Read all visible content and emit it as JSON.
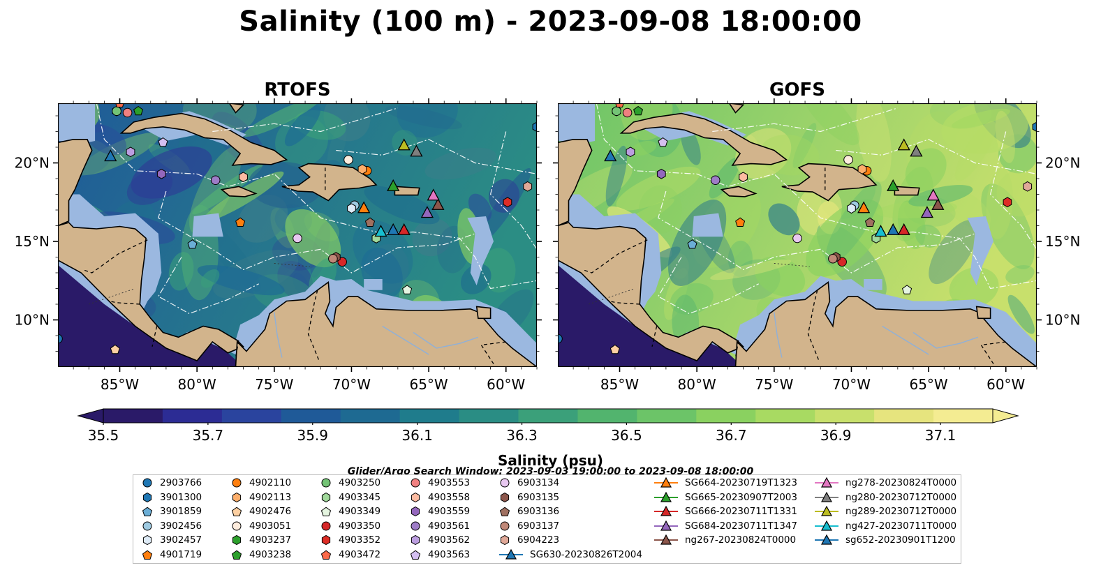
{
  "chart_data": {
    "type": "heatmap",
    "title": "Salinity (100 m) - 2023-09-08 18:00:00",
    "variable": "Salinity",
    "depth": "100 m",
    "timestamp": "2023-09-08 18:00:00",
    "panels": [
      {
        "id": "rtofs",
        "title": "RTOFS"
      },
      {
        "id": "gofs",
        "title": "GOFS"
      }
    ],
    "x_ticks": [
      "85°W",
      "80°W",
      "75°W",
      "70°W",
      "65°W",
      "60°W"
    ],
    "x_tick_values": [
      -85,
      -80,
      -75,
      -70,
      -65,
      -60
    ],
    "y_ticks": [
      "20°N",
      "15°N",
      "10°N"
    ],
    "y_tick_values": [
      20,
      15,
      10
    ],
    "xlim": [
      -89,
      -58
    ],
    "ylim": [
      7,
      23.8
    ],
    "colorbar": {
      "label": "Salinity (psu)",
      "ticks": [
        "35.5",
        "35.7",
        "35.9",
        "36.1",
        "36.3",
        "36.5",
        "36.7",
        "36.9",
        "37.1"
      ],
      "range": [
        35.5,
        37.2
      ],
      "extend": "both",
      "colors": [
        "#2a1a68",
        "#2c2c94",
        "#2a449e",
        "#1f5a98",
        "#1e6a92",
        "#1f7c8c",
        "#2a8d84",
        "#3ba07a",
        "#52b46e",
        "#6cc468",
        "#8ad160",
        "#a8da62",
        "#c8e06c",
        "#e6e47e",
        "#f4ec92"
      ]
    },
    "search_window": "Glider/Argo Search Window: 2023-09-03 19:00:00 to 2023-09-08 18:00:00",
    "argo_floats": [
      {
        "id": "2903766",
        "color": "#1f77b4",
        "marker": "circle",
        "lon": -89,
        "lat": 8.8
      },
      {
        "id": "3901300",
        "color": "#1f77b4",
        "marker": "hexagon",
        "lon": -58,
        "lat": 22.3
      },
      {
        "id": "3901859",
        "color": "#6baed6",
        "marker": "pentagon",
        "lon": -80.3,
        "lat": 14.8
      },
      {
        "id": "3902456",
        "color": "#9ecae1",
        "marker": "circle",
        "lon": -69.8,
        "lat": 17.3
      },
      {
        "id": "3902457",
        "color": "#deebf7",
        "marker": "hexagon",
        "lon": -70,
        "lat": 17.1
      },
      {
        "id": "4901719",
        "color": "#ff7f0e",
        "marker": "pentagon",
        "lon": -77.2,
        "lat": 16.2
      },
      {
        "id": "4902110",
        "color": "#ff7f0e",
        "marker": "circle",
        "lon": -69,
        "lat": 19.5
      },
      {
        "id": "4902113",
        "color": "#fdae6b",
        "marker": "hexagon",
        "lon": -69.3,
        "lat": 19.6
      },
      {
        "id": "4902476",
        "color": "#fdd0a2",
        "marker": "pentagon",
        "lon": -85.3,
        "lat": 8.1
      },
      {
        "id": "4903051",
        "color": "#feedde",
        "marker": "circle",
        "lon": -70.2,
        "lat": 20.2
      },
      {
        "id": "4903237",
        "color": "#2ca02c",
        "marker": "hexagon",
        "lon": -85.2,
        "lat": 23.3
      },
      {
        "id": "4903238",
        "color": "#2ca02c",
        "marker": "pentagon",
        "lon": -83.8,
        "lat": 23.3
      },
      {
        "id": "4903250",
        "color": "#74c476",
        "marker": "circle",
        "lon": -85.2,
        "lat": 23.3
      },
      {
        "id": "4903345",
        "color": "#a1d99b",
        "marker": "hexagon",
        "lon": -68.4,
        "lat": 15.2
      },
      {
        "id": "4903349",
        "color": "#e5f5e0",
        "marker": "pentagon",
        "lon": -66.4,
        "lat": 11.9
      },
      {
        "id": "4903350",
        "color": "#d62728",
        "marker": "circle",
        "lon": -70.6,
        "lat": 13.7
      },
      {
        "id": "4903352",
        "color": "#de2d26",
        "marker": "hexagon",
        "lon": -59.9,
        "lat": 17.5
      },
      {
        "id": "4903472",
        "color": "#fb6a4a",
        "marker": "pentagon",
        "lon": -85,
        "lat": 23.8
      },
      {
        "id": "4903553",
        "color": "#f08080",
        "marker": "circle",
        "lon": -84.5,
        "lat": 23.2
      },
      {
        "id": "4903558",
        "color": "#fcbba1",
        "marker": "hexagon",
        "lon": -77,
        "lat": 19.1
      },
      {
        "id": "4903559",
        "color": "#9467bd",
        "marker": "hexagon",
        "lon": -82.3,
        "lat": 19.3
      },
      {
        "id": "4903561",
        "color": "#9e7cc7",
        "marker": "circle",
        "lon": -78.8,
        "lat": 18.9
      },
      {
        "id": "4903562",
        "color": "#bc9ee0",
        "marker": "hexagon",
        "lon": -84.3,
        "lat": 20.7
      },
      {
        "id": "4903563",
        "color": "#d4bff0",
        "marker": "pentagon",
        "lon": -82.2,
        "lat": 21.3
      },
      {
        "id": "6903134",
        "color": "#e8c8f0",
        "marker": "circle",
        "lon": -73.5,
        "lat": 15.2
      },
      {
        "id": "6903135",
        "color": "#8c564b",
        "marker": "hexagon",
        "lon": -71,
        "lat": 14
      },
      {
        "id": "6903136",
        "color": "#a07060",
        "marker": "pentagon",
        "lon": -68.8,
        "lat": 16.2
      },
      {
        "id": "6903137",
        "color": "#c08878",
        "marker": "circle",
        "lon": -71.2,
        "lat": 13.9
      },
      {
        "id": "6904223",
        "color": "#e0a898",
        "marker": "hexagon",
        "lon": -58.6,
        "lat": 18.5
      }
    ],
    "gliders": [
      {
        "id": "SG630-20230826T2004",
        "color": "#1f77b4",
        "marker": "triangle",
        "lon": -85.6,
        "lat": 20.4
      },
      {
        "id": "SG664-20230719T1323",
        "color": "#ff7f0e",
        "marker": "triangle",
        "lon": -69.2,
        "lat": 17.1
      },
      {
        "id": "SG665-20230907T2003",
        "color": "#2ca02c",
        "marker": "triangle",
        "lon": -67.3,
        "lat": 18.5
      },
      {
        "id": "SG666-20230711T1331",
        "color": "#d62728",
        "marker": "triangle",
        "lon": -66.6,
        "lat": 15.7
      },
      {
        "id": "SG684-20230711T1347",
        "color": "#9467bd",
        "marker": "triangle",
        "lon": -65.1,
        "lat": 16.8
      },
      {
        "id": "ng267-20230824T0000",
        "color": "#8c564b",
        "marker": "triangle",
        "lon": -64.4,
        "lat": 17.3
      },
      {
        "id": "ng278-20230824T0000",
        "color": "#e377c2",
        "marker": "triangle",
        "lon": -64.7,
        "lat": 17.9
      },
      {
        "id": "ng280-20230712T0000",
        "color": "#7f7f7f",
        "marker": "triangle",
        "lon": -65.8,
        "lat": 20.7
      },
      {
        "id": "ng289-20230712T0000",
        "color": "#bcbd22",
        "marker": "triangle",
        "lon": -66.6,
        "lat": 21.1
      },
      {
        "id": "ng427-20230711T0000",
        "color": "#17becf",
        "marker": "triangle",
        "lon": -68.1,
        "lat": 15.6
      },
      {
        "id": "sg652-20230901T1200",
        "color": "#1f77b4",
        "marker": "triangle",
        "lon": -67.3,
        "lat": 15.7
      }
    ],
    "legend_columns": [
      [
        "2903766",
        "3901300",
        "3901859",
        "3902456",
        "3902457",
        "4901719"
      ],
      [
        "4902110",
        "4902113",
        "4902476",
        "4903051",
        "4903237",
        "4903238"
      ],
      [
        "4903250",
        "4903345",
        "4903349",
        "4903350",
        "4903352",
        "4903472"
      ],
      [
        "4903553",
        "4903558",
        "4903559",
        "4903561",
        "4903562",
        "4903563"
      ],
      [
        "6903134",
        "6903135",
        "6903136",
        "6903137",
        "6904223",
        "SG630-20230826T2004"
      ],
      [
        "SG664-20230719T1323",
        "SG665-20230907T2003",
        "SG666-20230711T1331",
        "SG684-20230711T1347",
        "ng267-20230824T0000"
      ],
      [
        "ng278-20230824T0000",
        "ng280-20230712T0000",
        "ng289-20230712T0000",
        "ng427-20230711T0000",
        "sg652-20230901T1200"
      ]
    ],
    "map_colors": {
      "land": "#d2b48c",
      "shelf": "#9bb8e0",
      "ocean_deep": "#2a1a68"
    }
  }
}
